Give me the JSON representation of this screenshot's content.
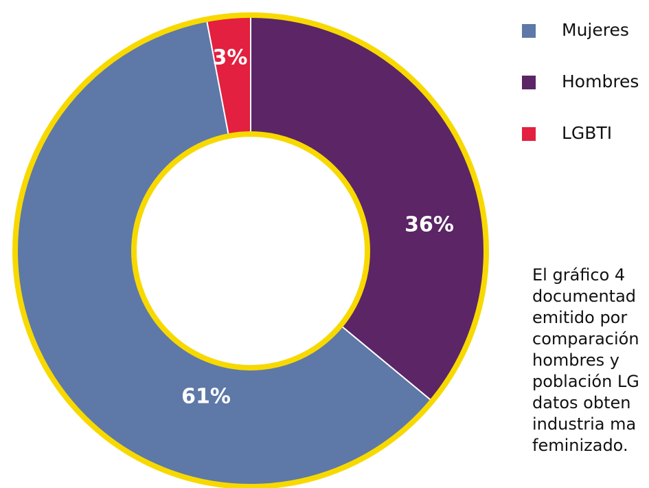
{
  "chart_data": {
    "type": "donut",
    "categories": [
      "Mujeres",
      "Hombres",
      "LGBTI"
    ],
    "values": [
      61,
      36,
      3
    ],
    "value_labels": [
      "61%",
      "36%",
      "3%"
    ],
    "colors": [
      "#5e78a8",
      "#5b2566",
      "#e3203f"
    ],
    "legend": "top-right"
  },
  "text": {
    "lines": [
      "El gráfico 4",
      "documentad",
      "emitido por",
      "comparación",
      "hombres y",
      "población LG",
      "datos obten",
      "industria ma",
      "feminizado."
    ]
  }
}
